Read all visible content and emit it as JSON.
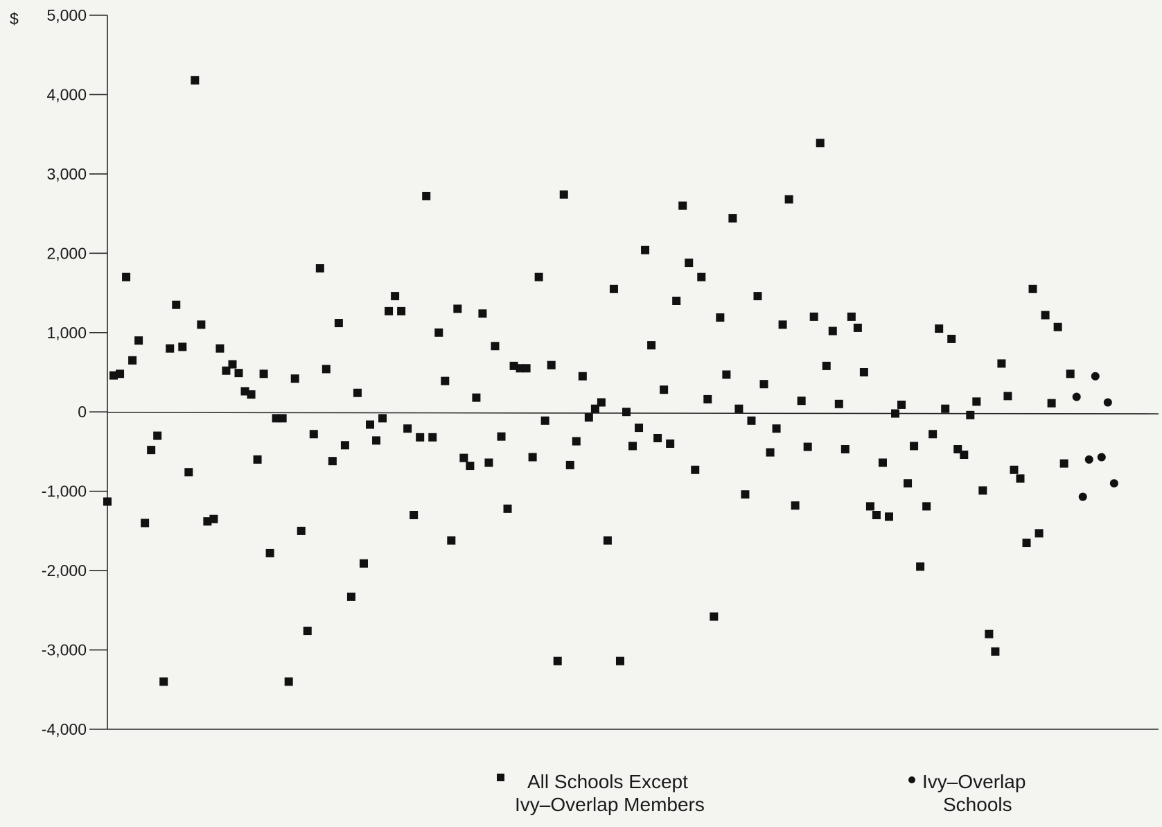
{
  "chart_data": {
    "type": "scatter",
    "title": "",
    "xlabel": "",
    "ylabel": "",
    "y_unit_symbol": "$",
    "ylim": [
      -4000,
      5000
    ],
    "y_ticks": [
      5000,
      4000,
      3000,
      2000,
      1000,
      0,
      -1000,
      -2000,
      -3000,
      -4000
    ],
    "y_tick_labels": [
      "5,000",
      "4,000",
      "3,000",
      "2,000",
      "1,000",
      "0",
      "-1,000",
      "-2,000",
      "-3,000",
      "-4,000"
    ],
    "x_axis": "unlabeled school index",
    "xlim": [
      1,
      168
    ],
    "grid": false,
    "legend_position": "bottom",
    "series": [
      {
        "name": "All Schools Except Ivy–Overlap Members",
        "legend_lines": [
          "All Schools Except",
          "Ivy–Overlap Members"
        ],
        "marker": "square",
        "color": "#111111",
        "points": [
          [
            1,
            -1130
          ],
          [
            2,
            460
          ],
          [
            3,
            480
          ],
          [
            4,
            1700
          ],
          [
            5,
            650
          ],
          [
            6,
            900
          ],
          [
            7,
            -1400
          ],
          [
            8,
            -480
          ],
          [
            9,
            -300
          ],
          [
            10,
            -3400
          ],
          [
            11,
            800
          ],
          [
            12,
            1350
          ],
          [
            13,
            820
          ],
          [
            14,
            -760
          ],
          [
            15,
            4180
          ],
          [
            16,
            1100
          ],
          [
            17,
            -1380
          ],
          [
            18,
            -1350
          ],
          [
            19,
            800
          ],
          [
            20,
            520
          ],
          [
            21,
            600
          ],
          [
            22,
            490
          ],
          [
            23,
            260
          ],
          [
            24,
            220
          ],
          [
            25,
            -600
          ],
          [
            26,
            480
          ],
          [
            27,
            -1780
          ],
          [
            28,
            -80
          ],
          [
            29,
            -80
          ],
          [
            30,
            -3400
          ],
          [
            31,
            420
          ],
          [
            32,
            -1500
          ],
          [
            33,
            -2760
          ],
          [
            34,
            -280
          ],
          [
            35,
            1810
          ],
          [
            36,
            540
          ],
          [
            37,
            -620
          ],
          [
            38,
            1120
          ],
          [
            39,
            -420
          ],
          [
            40,
            -2330
          ],
          [
            41,
            240
          ],
          [
            42,
            -1910
          ],
          [
            43,
            -160
          ],
          [
            44,
            -360
          ],
          [
            45,
            -80
          ],
          [
            46,
            1270
          ],
          [
            47,
            1460
          ],
          [
            48,
            1270
          ],
          [
            49,
            -210
          ],
          [
            50,
            -1300
          ],
          [
            51,
            -320
          ],
          [
            52,
            2720
          ],
          [
            53,
            -320
          ],
          [
            54,
            1000
          ],
          [
            55,
            390
          ],
          [
            56,
            -1620
          ],
          [
            57,
            1300
          ],
          [
            58,
            -580
          ],
          [
            59,
            -680
          ],
          [
            60,
            180
          ],
          [
            61,
            1240
          ],
          [
            62,
            -640
          ],
          [
            63,
            830
          ],
          [
            64,
            -310
          ],
          [
            65,
            -1220
          ],
          [
            66,
            580
          ],
          [
            67,
            550
          ],
          [
            68,
            550
          ],
          [
            69,
            -570
          ],
          [
            70,
            1700
          ],
          [
            71,
            -110
          ],
          [
            72,
            590
          ],
          [
            73,
            -3140
          ],
          [
            74,
            2740
          ],
          [
            75,
            -670
          ],
          [
            76,
            -370
          ],
          [
            77,
            450
          ],
          [
            78,
            -70
          ],
          [
            79,
            40
          ],
          [
            80,
            120
          ],
          [
            81,
            -1620
          ],
          [
            82,
            1550
          ],
          [
            83,
            -3140
          ],
          [
            84,
            0
          ],
          [
            85,
            -430
          ],
          [
            86,
            -200
          ],
          [
            87,
            2040
          ],
          [
            88,
            840
          ],
          [
            89,
            -330
          ],
          [
            90,
            280
          ],
          [
            91,
            -400
          ],
          [
            92,
            1400
          ],
          [
            93,
            2600
          ],
          [
            94,
            1880
          ],
          [
            95,
            -730
          ],
          [
            96,
            1700
          ],
          [
            97,
            160
          ],
          [
            98,
            -2580
          ],
          [
            99,
            1190
          ],
          [
            100,
            470
          ],
          [
            101,
            2440
          ],
          [
            102,
            40
          ],
          [
            103,
            -1040
          ],
          [
            104,
            -110
          ],
          [
            105,
            1460
          ],
          [
            106,
            350
          ],
          [
            107,
            -510
          ],
          [
            108,
            -210
          ],
          [
            109,
            1100
          ],
          [
            110,
            2680
          ],
          [
            111,
            -1180
          ],
          [
            112,
            140
          ],
          [
            113,
            -440
          ],
          [
            114,
            1200
          ],
          [
            115,
            3390
          ],
          [
            116,
            580
          ],
          [
            117,
            1020
          ],
          [
            118,
            100
          ],
          [
            119,
            -470
          ],
          [
            120,
            1200
          ],
          [
            121,
            1060
          ],
          [
            122,
            500
          ],
          [
            123,
            -1190
          ],
          [
            124,
            -1300
          ],
          [
            125,
            -640
          ],
          [
            126,
            -1320
          ],
          [
            127,
            -20
          ],
          [
            128,
            90
          ],
          [
            129,
            -900
          ],
          [
            130,
            -430
          ],
          [
            131,
            -1950
          ],
          [
            132,
            -1190
          ],
          [
            133,
            -280
          ],
          [
            134,
            1050
          ],
          [
            135,
            40
          ],
          [
            136,
            920
          ],
          [
            137,
            -470
          ],
          [
            138,
            -540
          ],
          [
            139,
            -40
          ],
          [
            140,
            130
          ],
          [
            141,
            -990
          ],
          [
            142,
            -2800
          ],
          [
            143,
            -3020
          ],
          [
            144,
            610
          ],
          [
            145,
            200
          ],
          [
            146,
            -730
          ],
          [
            147,
            -840
          ],
          [
            148,
            -1650
          ],
          [
            149,
            1550
          ],
          [
            150,
            -1530
          ],
          [
            151,
            1220
          ],
          [
            152,
            110
          ],
          [
            153,
            1070
          ],
          [
            154,
            -650
          ],
          [
            155,
            480
          ]
        ]
      },
      {
        "name": "Ivy–Overlap Schools",
        "legend_lines": [
          "Ivy–Overlap",
          "Schools"
        ],
        "marker": "circle",
        "color": "#111111",
        "points": [
          [
            156,
            190
          ],
          [
            157,
            -1070
          ],
          [
            158,
            -600
          ],
          [
            159,
            450
          ],
          [
            160,
            -570
          ],
          [
            161,
            120
          ],
          [
            162,
            -900
          ]
        ]
      }
    ]
  }
}
